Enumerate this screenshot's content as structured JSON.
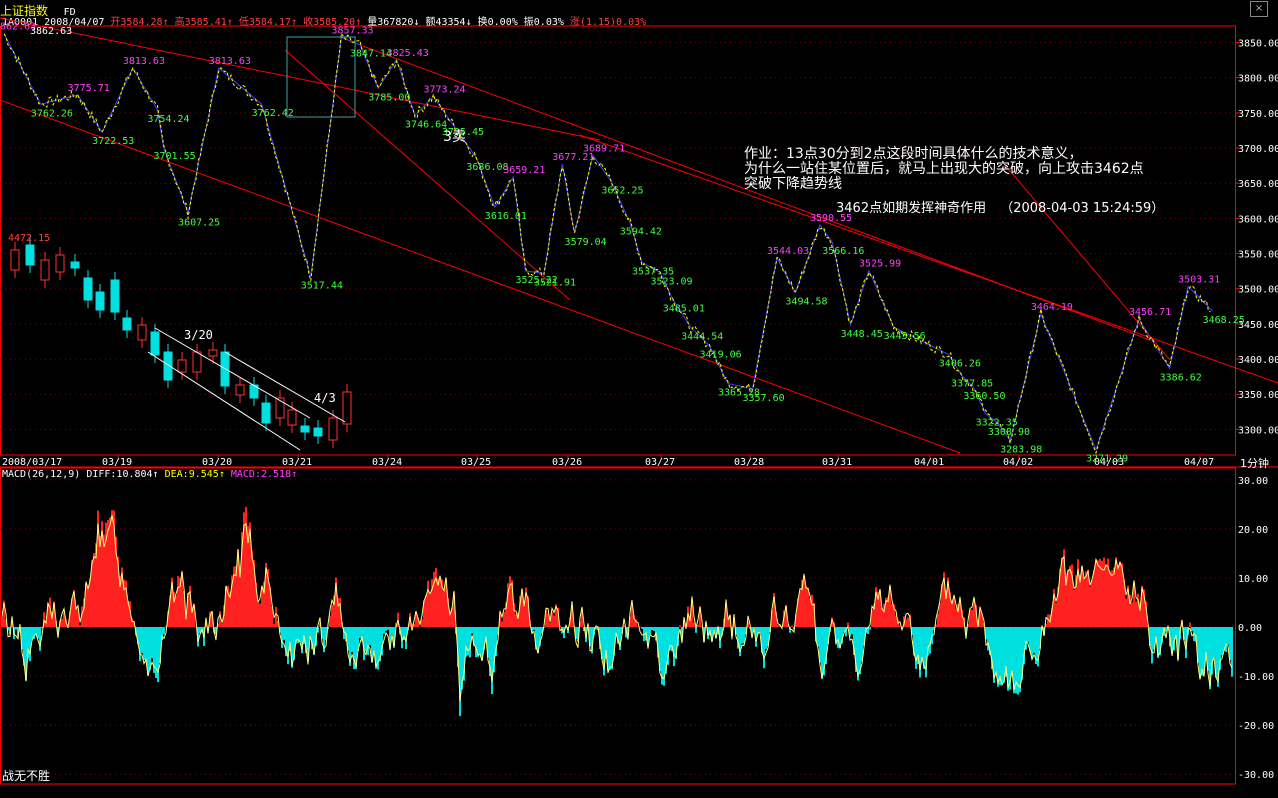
{
  "window": {
    "title": "上证指数",
    "tag": "FD",
    "close_icon": "close-icon"
  },
  "quote": {
    "code": "1A0001",
    "date": "2008/04/07",
    "open_label": "开",
    "open": "3584.28",
    "high_label": "高",
    "high": "3585.41",
    "low_label": "低",
    "low": "3584.17",
    "close_label": "收",
    "close": "3585.20",
    "volume_label": "量",
    "volume": "367820",
    "amount_label": "额",
    "amount": "43354",
    "turnover_label": "换",
    "turnover": "0.00%",
    "amplitude_label": "振",
    "amplitude": "0.03%",
    "change_label": "涨",
    "change": "(1.15)0.03%"
  },
  "colors": {
    "up": "#ff3030",
    "down": "#00e0e0",
    "label_hi": "#ff40ff",
    "label_lo": "#40ff40",
    "grid": "#800000",
    "axis": "#ff0000",
    "diff": "#ffff80",
    "dea": "#ffff00",
    "macd_up": "#ff2020",
    "macd_down": "#00e0e0",
    "price": "#ffff00",
    "blue": "#4040ff"
  },
  "annotations": {
    "homework_line1": "作业：13点30分到2点这段时间具体什么的技术意义，",
    "homework_line2": "为什么一站住某位置后，就马上出现大的突破，向上攻击3462点",
    "homework_line3": "突破下降趋势线",
    "note": "3462点如期发挥神奇作用",
    "timestamp": "（2008-04-03 15:24:59）",
    "sell_mark": "3卖",
    "inset_date1": "3/20",
    "inset_date2": "4/3",
    "inset_high": "4472.15",
    "top_left_high": "3862.63",
    "period": "1分钟",
    "signature": "战无不胜"
  },
  "macd_header": {
    "name": "MACD(26,12,9)",
    "diff_label": "DIFF:",
    "diff": "10.804",
    "dea_label": "DEA:",
    "dea": "9.545",
    "macd_label": "MACD:",
    "macd": "2.518"
  },
  "chart_data": [
    {
      "type": "line",
      "title": "上证指数 1分钟",
      "x_ticks": [
        "2008/03/17",
        "03/19",
        "03/20",
        "03/21",
        "03/24",
        "03/25",
        "03/26",
        "03/27",
        "03/28",
        "03/31",
        "04/01",
        "04/02",
        "04/03",
        "04/07"
      ],
      "y_ticks": [
        "3850.00",
        "3800.00",
        "3750.00",
        "3700.00",
        "3650.00",
        "3600.00",
        "3550.00",
        "3500.00",
        "3450.00",
        "3400.00",
        "3350.00",
        "3300.00"
      ],
      "ylim": [
        3275,
        3865
      ],
      "pivots": [
        {
          "x": 0.0,
          "y": 3862.63
        },
        {
          "x": 0.03,
          "y": 3762.26
        },
        {
          "x": 0.06,
          "y": 3775.71
        },
        {
          "x": 0.08,
          "y": 3722.53
        },
        {
          "x": 0.105,
          "y": 3813.63
        },
        {
          "x": 0.13,
          "y": 3701.55
        },
        {
          "x": 0.125,
          "y": 3754.24
        },
        {
          "x": 0.15,
          "y": 3607.25
        },
        {
          "x": 0.175,
          "y": 3813.63
        },
        {
          "x": 0.21,
          "y": 3762.42
        },
        {
          "x": 0.25,
          "y": 3517.44
        },
        {
          "x": 0.275,
          "y": 3857.33
        },
        {
          "x": 0.29,
          "y": 3847.14
        },
        {
          "x": 0.305,
          "y": 3785.0
        },
        {
          "x": 0.32,
          "y": 3825.43
        },
        {
          "x": 0.335,
          "y": 3746.64
        },
        {
          "x": 0.35,
          "y": 3773.24
        },
        {
          "x": 0.365,
          "y": 3735.45
        },
        {
          "x": 0.385,
          "y": 3686.08
        },
        {
          "x": 0.4,
          "y": 3616.01
        },
        {
          "x": 0.415,
          "y": 3659.21
        },
        {
          "x": 0.425,
          "y": 3525.22
        },
        {
          "x": 0.44,
          "y": 3521.91
        },
        {
          "x": 0.455,
          "y": 3677.21
        },
        {
          "x": 0.465,
          "y": 3579.04
        },
        {
          "x": 0.48,
          "y": 3689.71
        },
        {
          "x": 0.495,
          "y": 3652.25
        },
        {
          "x": 0.51,
          "y": 3594.42
        },
        {
          "x": 0.52,
          "y": 3537.35
        },
        {
          "x": 0.535,
          "y": 3523.09
        },
        {
          "x": 0.545,
          "y": 3485.01
        },
        {
          "x": 0.56,
          "y": 3444.54
        },
        {
          "x": 0.575,
          "y": 3419.06
        },
        {
          "x": 0.59,
          "y": 3365.28
        },
        {
          "x": 0.61,
          "y": 3357.6
        },
        {
          "x": 0.63,
          "y": 3544.03
        },
        {
          "x": 0.645,
          "y": 3494.58
        },
        {
          "x": 0.665,
          "y": 3590.55
        },
        {
          "x": 0.675,
          "y": 3566.16
        },
        {
          "x": 0.69,
          "y": 3448.45
        },
        {
          "x": 0.705,
          "y": 3525.99
        },
        {
          "x": 0.725,
          "y": 3445.56
        },
        {
          "x": 0.77,
          "y": 3406.26
        },
        {
          "x": 0.78,
          "y": 3377.85
        },
        {
          "x": 0.79,
          "y": 3360.5
        },
        {
          "x": 0.8,
          "y": 3322.35
        },
        {
          "x": 0.81,
          "y": 3308.9
        },
        {
          "x": 0.82,
          "y": 3283.98
        },
        {
          "x": 0.845,
          "y": 3464.19
        },
        {
          "x": 0.89,
          "y": 3271.29
        },
        {
          "x": 0.925,
          "y": 3456.71
        },
        {
          "x": 0.95,
          "y": 3386.62
        },
        {
          "x": 0.965,
          "y": 3503.31
        },
        {
          "x": 0.985,
          "y": 3468.25
        }
      ]
    },
    {
      "type": "bar",
      "title": "MACD(26,12,9)",
      "y_ticks": [
        "30.00",
        "20.00",
        "10.00",
        "0.00",
        "-10.00",
        "-20.00",
        "-30.00"
      ],
      "ylim": [
        -32,
        32
      ],
      "last": {
        "diff": 10.804,
        "dea": 9.545,
        "macd": 2.518
      }
    }
  ]
}
